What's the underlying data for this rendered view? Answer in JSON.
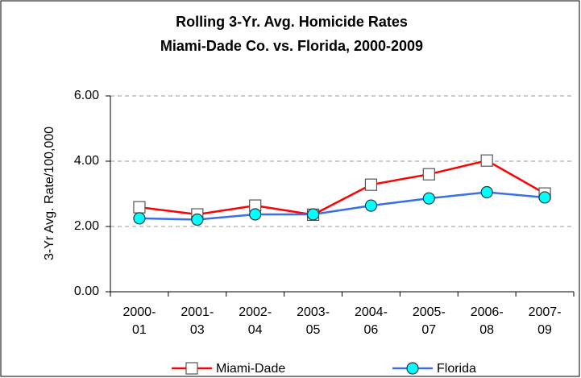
{
  "chart_data": {
    "type": "line",
    "title": "Rolling 3-Yr. Avg. Homicide Rates",
    "subtitle": "Miami-Dade Co. vs. Florida, 2000-2009",
    "y_label": "3-Yr Avg. Rate/100,000",
    "categories": [
      "2000-\n01",
      "2001-\n03",
      "2002-\n04",
      "2003-\n05",
      "2004-\n06",
      "2005-\n07",
      "2006-\n08",
      "2007-\n09"
    ],
    "series": [
      {
        "name": "Miami-Dade",
        "color": "#ff0000",
        "marker": "square",
        "values": [
          2.59,
          2.37,
          2.64,
          2.36,
          3.28,
          3.6,
          4.02,
          3.01
        ]
      },
      {
        "name": "Florida",
        "color": "#3a6fe8",
        "marker": "circle",
        "values": [
          2.25,
          2.21,
          2.37,
          2.37,
          2.64,
          2.86,
          3.05,
          2.89
        ]
      }
    ],
    "ylim": [
      0,
      6
    ],
    "yticks": [
      {
        "value": 0,
        "label": "0.00"
      },
      {
        "value": 2,
        "label": "2.00"
      },
      {
        "value": 4,
        "label": "4.00"
      },
      {
        "value": 6,
        "label": "6.00"
      }
    ],
    "grid": true,
    "legend": "bottom"
  }
}
